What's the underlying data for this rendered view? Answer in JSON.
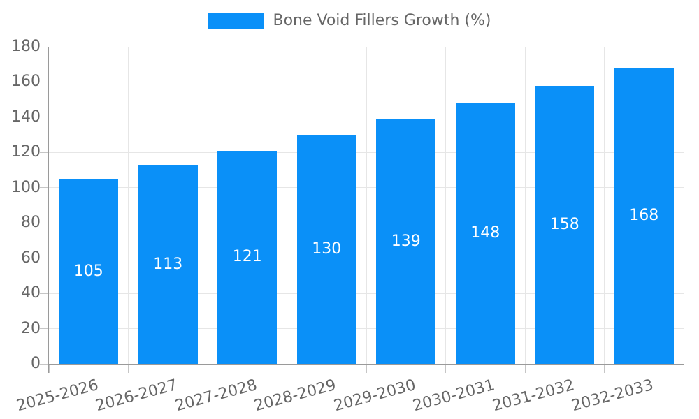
{
  "chart_data": {
    "type": "bar",
    "series_name": "Bone Void Fillers Growth (%)",
    "categories": [
      "2025-2026",
      "2026-2027",
      "2027-2028",
      "2028-2029",
      "2029-2030",
      "2030-2031",
      "2031-2032",
      "2032-2033"
    ],
    "values": [
      105,
      113,
      121,
      130,
      139,
      148,
      158,
      168
    ],
    "ylim": [
      0,
      180
    ],
    "yticks": [
      0,
      20,
      40,
      60,
      80,
      100,
      120,
      140,
      160,
      180
    ],
    "grid": true,
    "legend_position": "top",
    "bar_value_labels": true,
    "bar_width_fraction": 0.75,
    "x_label_rotation_deg": -15,
    "colors": {
      "bar": "#0a90f8",
      "value_label": "#ffffff",
      "axis_text": "#666666",
      "legend_text": "#666666",
      "grid": "#e6e6e6",
      "tick": "#c6c6c6",
      "axis_line": "#9a9a9a",
      "background": "#ffffff"
    }
  }
}
